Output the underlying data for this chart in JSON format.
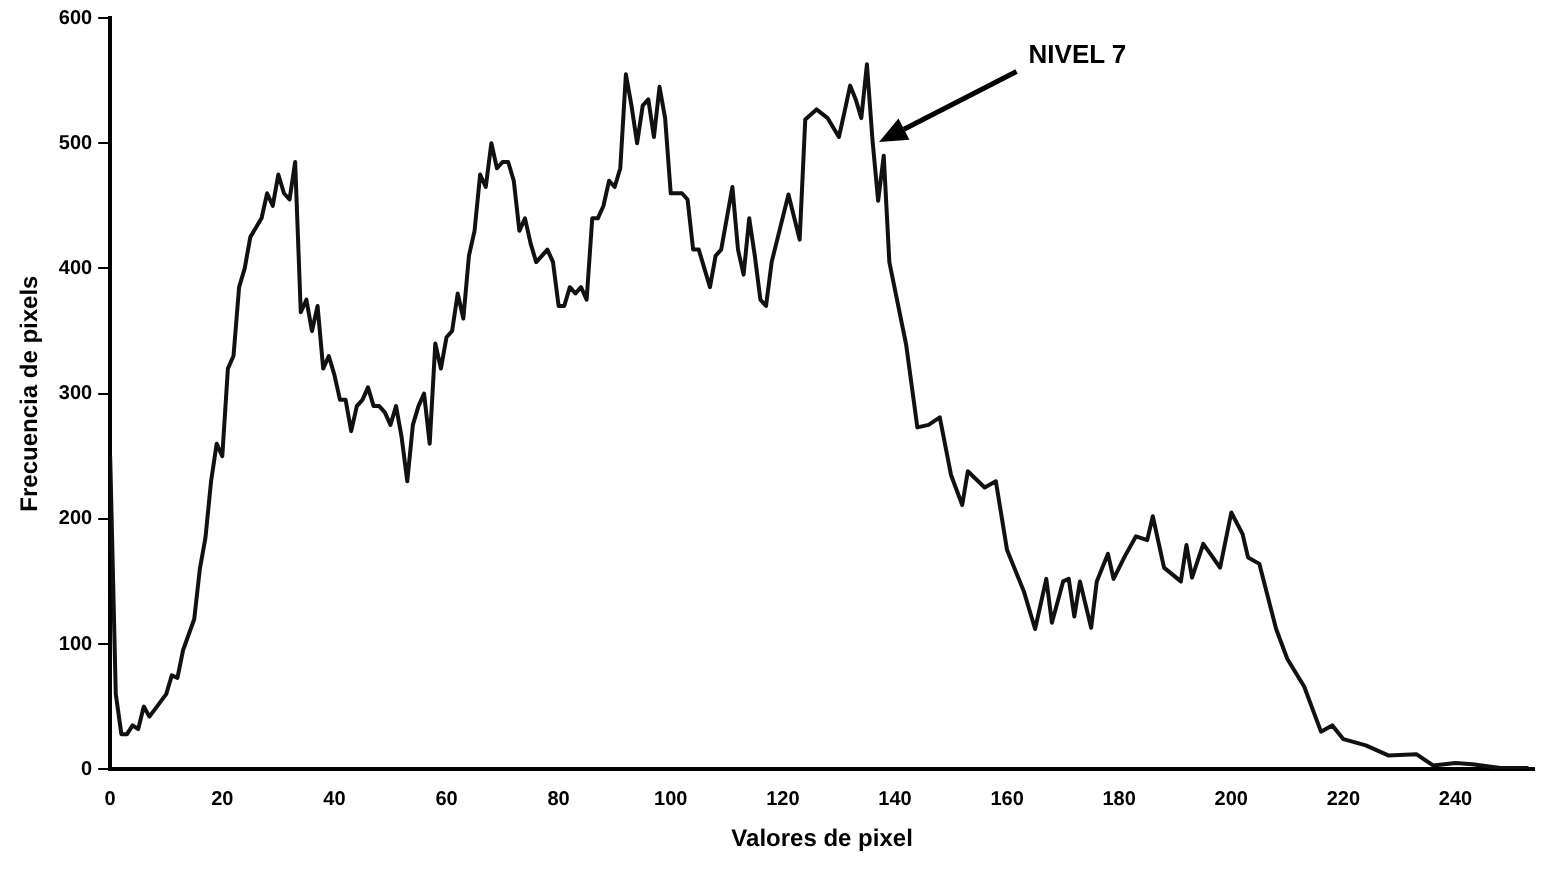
{
  "chart_data": {
    "type": "line",
    "xlabel": "Valores de pixel",
    "ylabel": "Frecuencia de pixels",
    "x": [
      0,
      1,
      2,
      3,
      4,
      5,
      6,
      7,
      8,
      10,
      11,
      12,
      13,
      15,
      16,
      17,
      18,
      19,
      20,
      21,
      22,
      23,
      24,
      25,
      27,
      28,
      29,
      30,
      31,
      32,
      33,
      34,
      35,
      36,
      37,
      38,
      39,
      40,
      41,
      42,
      43,
      44,
      45,
      46,
      47,
      48,
      49,
      50,
      51,
      52,
      53,
      54,
      55,
      56,
      57,
      58,
      59,
      60,
      61,
      62,
      63,
      64,
      65,
      66,
      67,
      68,
      69,
      70,
      71,
      72,
      73,
      74,
      75,
      76,
      77,
      78,
      79,
      80,
      81,
      82,
      83,
      84,
      85,
      86,
      87,
      88,
      89,
      90,
      91,
      92,
      93,
      94,
      95,
      96,
      97,
      98,
      99,
      100,
      102,
      103,
      104,
      105,
      106,
      107,
      108,
      109,
      110,
      111,
      112,
      113,
      114,
      115,
      116,
      117,
      118,
      121,
      123,
      124,
      126,
      128,
      130,
      131,
      132,
      133,
      134,
      135,
      136,
      137,
      138,
      139,
      142,
      144,
      146,
      148,
      150,
      152,
      153,
      156,
      158,
      160,
      163,
      165,
      167,
      168,
      170,
      171,
      172,
      173,
      175,
      176,
      178,
      179,
      181,
      183,
      185,
      186,
      188,
      191,
      192,
      193,
      195,
      198,
      200,
      202,
      203,
      205,
      208,
      210,
      213,
      216,
      218,
      220,
      224,
      228,
      233,
      236,
      240,
      243,
      248,
      253
    ],
    "series": [
      {
        "color": "#111111",
        "values": [
          250,
          60,
          28,
          28,
          35,
          32,
          50,
          42,
          48,
          60,
          75,
          73,
          95,
          120,
          160,
          185,
          230,
          260,
          250,
          320,
          330,
          385,
          400,
          425,
          440,
          460,
          450,
          475,
          460,
          455,
          485,
          365,
          375,
          350,
          370,
          320,
          330,
          315,
          295,
          295,
          270,
          290,
          295,
          305,
          290,
          290,
          285,
          275,
          290,
          265,
          230,
          275,
          290,
          300,
          260,
          340,
          320,
          345,
          350,
          380,
          360,
          410,
          430,
          475,
          465,
          500,
          480,
          485,
          485,
          470,
          430,
          440,
          420,
          405,
          410,
          415,
          405,
          370,
          370,
          385,
          380,
          385,
          375,
          440,
          440,
          450,
          470,
          465,
          480,
          555,
          530,
          500,
          530,
          535,
          505,
          545,
          520,
          460,
          460,
          455,
          415,
          415,
          400,
          385,
          410,
          415,
          440,
          465,
          415,
          395,
          440,
          410,
          375,
          370,
          405,
          459,
          423,
          519,
          527,
          520,
          505,
          525,
          546,
          535,
          520,
          563,
          502,
          454,
          490,
          405,
          339,
          273,
          275,
          281,
          235,
          211,
          238,
          225,
          230,
          175,
          142,
          112,
          152,
          117,
          150,
          152,
          122,
          150,
          113,
          150,
          172,
          152,
          170,
          186,
          183,
          202,
          161,
          150,
          179,
          153,
          180,
          161,
          205,
          188,
          169,
          164,
          112,
          88,
          66,
          30,
          35,
          24,
          19,
          11,
          12,
          3,
          5,
          4,
          1,
          1
        ]
      }
    ],
    "xlim": [
      0,
      254
    ],
    "ylim": [
      0,
      600
    ],
    "xticks": [
      0,
      20,
      40,
      60,
      80,
      100,
      120,
      140,
      160,
      180,
      200,
      220,
      240
    ],
    "yticks": [
      0,
      100,
      200,
      300,
      400,
      500,
      600
    ],
    "grid": false,
    "legend": false,
    "marker": "none",
    "line_style": "solid",
    "annotations": [
      "NIVEL 7"
    ]
  }
}
